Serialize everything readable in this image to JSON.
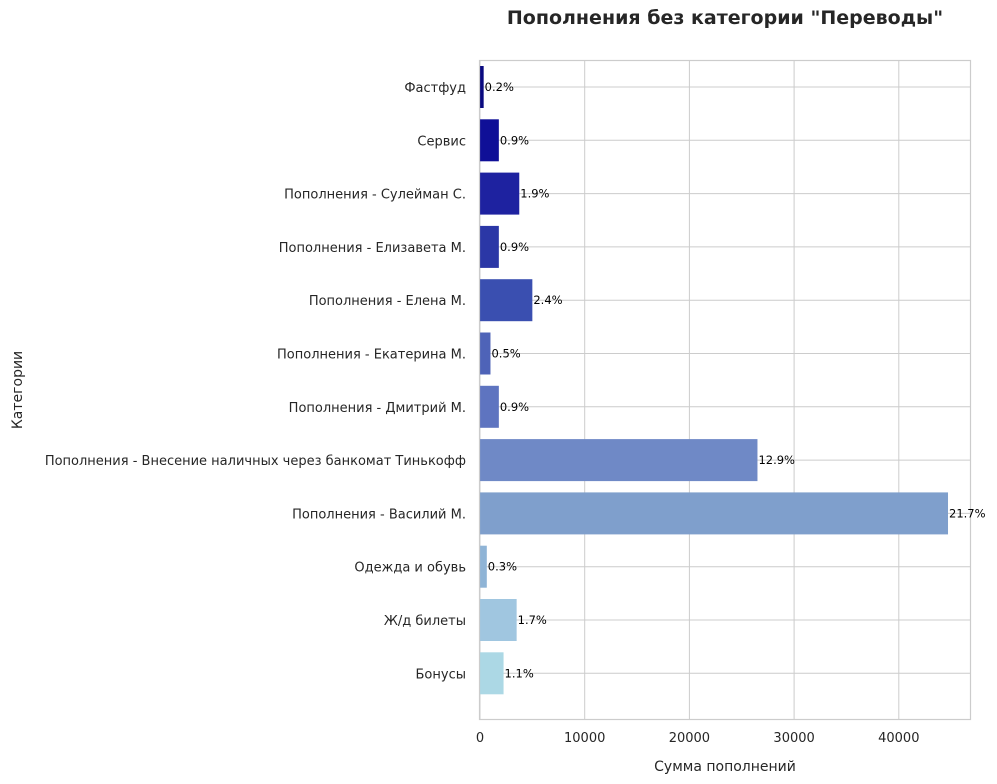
{
  "chart_data": {
    "type": "bar",
    "orientation": "horizontal",
    "title": "Пополнения без категории \"Переводы\"",
    "xlabel": "Сумма пополнений",
    "ylabel": "Категории",
    "xlim": [
      0,
      46800
    ],
    "xticks": [
      0,
      10000,
      20000,
      30000,
      40000
    ],
    "xtick_labels": [
      "0",
      "10000",
      "20000",
      "30000",
      "40000"
    ],
    "grid": true,
    "categories": [
      "Фастфуд",
      "Сервис",
      "Пополнения - Сулейман С.",
      "Пополнения - Елизавета М.",
      "Пополнения - Елена М.",
      "Пополнения - Екатерина М.",
      "Пополнения - Дмитрий М.",
      "Пополнения - Внесение наличных через банкомат Тинькофф",
      "Пополнения - Василий М.",
      "Одежда и обувь",
      "Ж/д билеты",
      "Бонусы"
    ],
    "values": [
      350,
      1800,
      3750,
      1800,
      5000,
      1000,
      1800,
      26500,
      44700,
      650,
      3500,
      2250
    ],
    "labels": [
      "0.2%",
      "0.9%",
      "1.9%",
      "0.9%",
      "2.4%",
      "0.5%",
      "0.9%",
      "12.9%",
      "21.7%",
      "0.3%",
      "1.7%",
      "1.1%"
    ],
    "colors": [
      "#0a0a80",
      "#0f0f97",
      "#1e22a0",
      "#2b37a6",
      "#3a4fb0",
      "#4e63b8",
      "#5e74c0",
      "#6f89c6",
      "#7f9fcc",
      "#8fb4d6",
      "#a0c6e0",
      "#acd8e5"
    ]
  }
}
